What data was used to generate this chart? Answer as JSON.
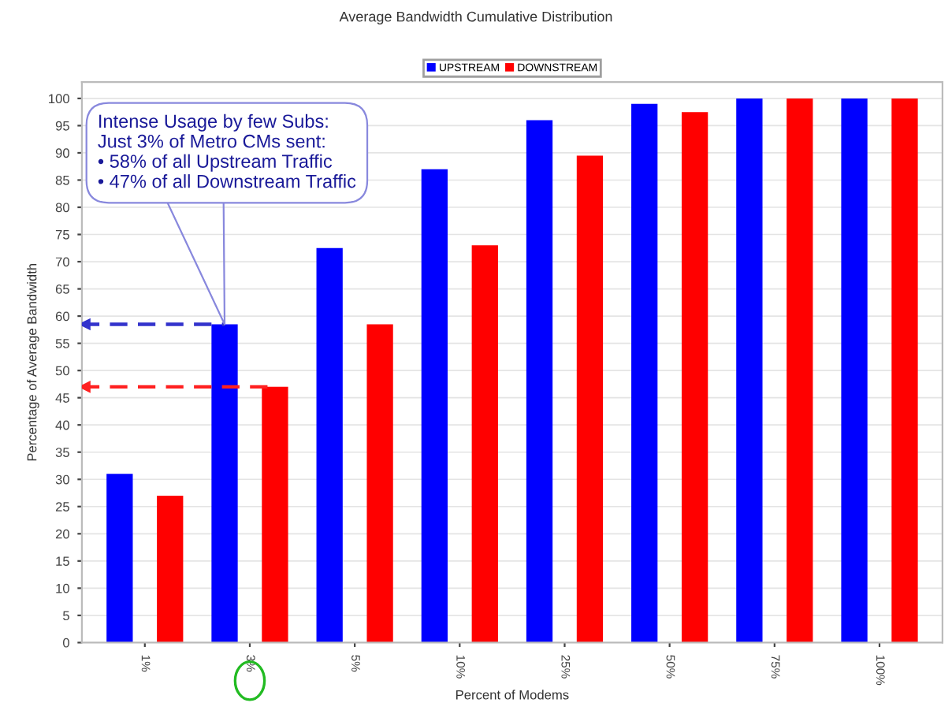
{
  "chart_data": {
    "type": "bar",
    "title": "Average Bandwidth Cumulative Distribution",
    "xlabel": "Percent of Modems",
    "ylabel": "Percentage of Average Bandwidth",
    "categories": [
      "1%",
      "3%",
      "5%",
      "10%",
      "25%",
      "50%",
      "75%",
      "100%"
    ],
    "series": [
      {
        "name": "UPSTREAM",
        "color": "#0000ff",
        "values": [
          31,
          58.5,
          72.5,
          87,
          96,
          99,
          100,
          100
        ]
      },
      {
        "name": "DOWNSTREAM",
        "color": "#ff0000",
        "values": [
          27,
          47,
          58.5,
          73,
          89.5,
          97.5,
          100,
          100
        ]
      }
    ],
    "ylim": [
      0,
      103
    ],
    "yticks": [
      0,
      5,
      10,
      15,
      20,
      25,
      30,
      35,
      40,
      45,
      50,
      55,
      60,
      65,
      70,
      75,
      80,
      85,
      90,
      95,
      100
    ],
    "grid": "y",
    "legend": "top",
    "annotations": [
      "Intense Usage by few Subs:\nJust 3% of Metro CMs sent:\n• 58% of all Upstream Traffic\n• 47% of all Downstream Traffic"
    ],
    "ref_lines": [
      {
        "axis": "y",
        "value": 58.5,
        "color": "#3333cc",
        "line_style": "dashed"
      },
      {
        "axis": "y",
        "value": 47,
        "color": "#ff2020",
        "line_style": "dashed"
      }
    ]
  }
}
